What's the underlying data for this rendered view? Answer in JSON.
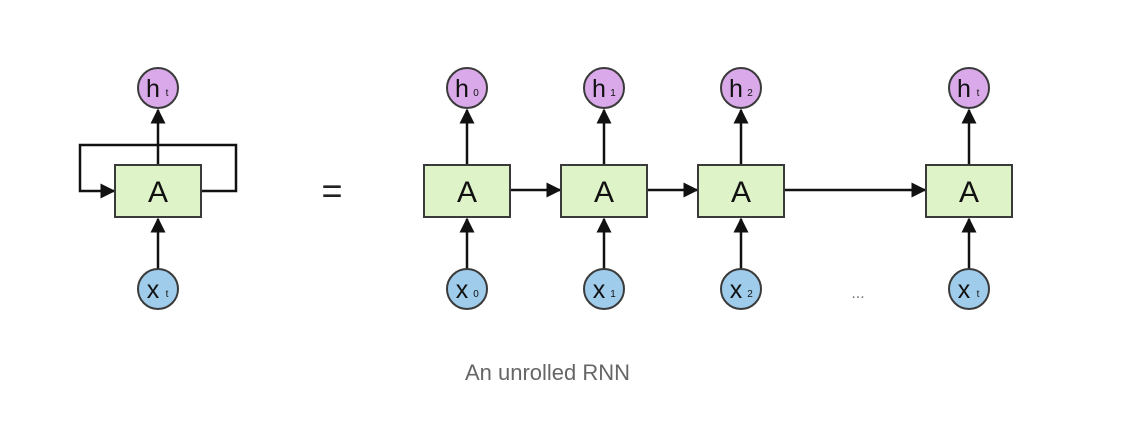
{
  "cell_label": "A",
  "equals_sign": "=",
  "ellipsis": "...",
  "caption": "An unrolled RNN",
  "hidden_main": "h",
  "input_main": "x",
  "rolled": {
    "hidden_sub": "t",
    "input_sub": "t"
  },
  "unrolled_steps": [
    {
      "hidden_sub": "0",
      "input_sub": "0"
    },
    {
      "hidden_sub": "1",
      "input_sub": "1"
    },
    {
      "hidden_sub": "2",
      "input_sub": "2"
    },
    {
      "hidden_sub": "t",
      "input_sub": "t"
    }
  ],
  "colors": {
    "cell_fill": "#dff3c8",
    "hidden_fill": "#d9a9ea",
    "input_fill": "#9fcceb",
    "stroke": "#3a3a3a",
    "caption": "#666666"
  }
}
